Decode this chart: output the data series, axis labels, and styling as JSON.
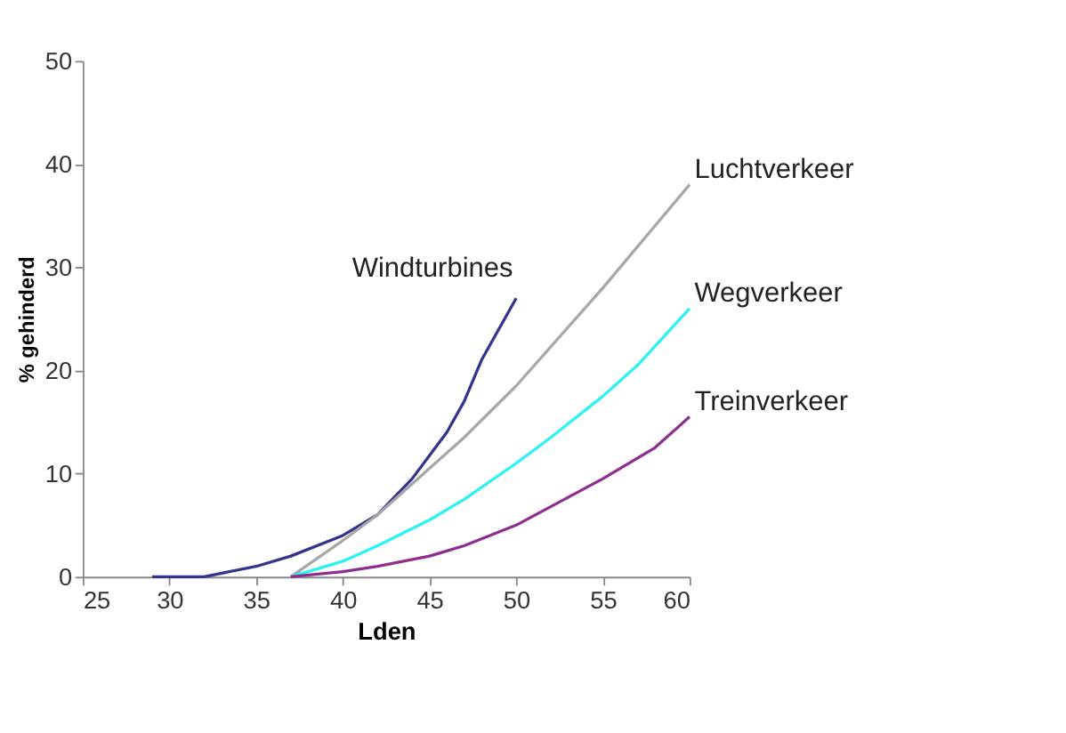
{
  "chart_data": {
    "type": "line",
    "xlabel": "Lden",
    "ylabel": "% gehinderd",
    "xlim": [
      25,
      60
    ],
    "xticks": [
      25,
      30,
      35,
      40,
      45,
      50,
      55,
      60
    ],
    "ylim": [
      0,
      50
    ],
    "yticks": [
      0,
      10,
      20,
      30,
      40,
      50
    ],
    "grid": false,
    "marker": "none",
    "line_style": "solid",
    "series": [
      {
        "name": "Windturbines",
        "color": "#34348c",
        "x": [
          29,
          32,
          35,
          37,
          40,
          42,
          44,
          46,
          47,
          48,
          49,
          50
        ],
        "values": [
          0,
          0,
          1,
          2,
          4,
          6,
          9.5,
          14,
          17,
          21,
          24,
          27
        ]
      },
      {
        "name": "Luchtverkeer",
        "color": "#a8a8a8",
        "x": [
          37,
          40,
          42,
          45,
          47,
          50,
          55,
          60
        ],
        "values": [
          0,
          3.5,
          6,
          10.5,
          13.5,
          18.5,
          28,
          38
        ]
      },
      {
        "name": "Wegverkeer",
        "color": "#2ef2f2",
        "x": [
          37,
          40,
          42,
          45,
          47,
          50,
          52,
          55,
          57,
          60
        ],
        "values": [
          0,
          1.5,
          3,
          5.5,
          7.5,
          11,
          13.5,
          17.5,
          20.5,
          26
        ]
      },
      {
        "name": "Treinverkeer",
        "color": "#8e2e8e",
        "x": [
          37,
          40,
          42,
          45,
          47,
          50,
          55,
          58,
          60
        ],
        "values": [
          0,
          0.5,
          1,
          2,
          3,
          5,
          9.5,
          12.5,
          15.5
        ]
      }
    ]
  }
}
